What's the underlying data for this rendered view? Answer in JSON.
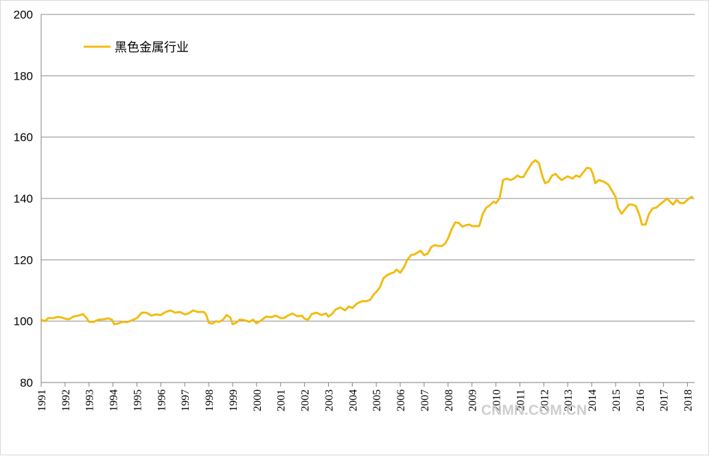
{
  "chart_data": {
    "type": "line",
    "title": "",
    "xlabel": "",
    "ylabel": "",
    "ylim": [
      80,
      200
    ],
    "yticks": [
      "200",
      "180",
      "160",
      "140",
      "120",
      "100",
      "80"
    ],
    "xlim": [
      1991,
      2018.3
    ],
    "xticks": [
      "1991",
      "1992",
      "1993",
      "1994",
      "1995",
      "1996",
      "1997",
      "1998",
      "1999",
      "2000",
      "2001",
      "2002",
      "2003",
      "2004",
      "2005",
      "2006",
      "2007",
      "2008",
      "2009",
      "2010",
      "2011",
      "2012",
      "2013",
      "2014",
      "2015",
      "2016",
      "2017",
      "2018"
    ],
    "grid": true,
    "legend_position": "top-left",
    "series": [
      {
        "name": "黑色金属行业",
        "color": "#f2bb10",
        "points": [
          [
            1991.0,
            100.5
          ],
          [
            1991.15,
            100.0
          ],
          [
            1991.3,
            101.0
          ],
          [
            1991.5,
            101.0
          ],
          [
            1991.7,
            101.4
          ],
          [
            1991.85,
            101.2
          ],
          [
            1992.0,
            100.8
          ],
          [
            1992.15,
            100.6
          ],
          [
            1992.35,
            101.5
          ],
          [
            1992.55,
            101.8
          ],
          [
            1992.75,
            102.3
          ],
          [
            1992.9,
            101.0
          ],
          [
            1993.0,
            99.8
          ],
          [
            1993.2,
            99.8
          ],
          [
            1993.4,
            100.5
          ],
          [
            1993.6,
            100.6
          ],
          [
            1993.8,
            100.9
          ],
          [
            1993.95,
            100.5
          ],
          [
            1994.05,
            99.0
          ],
          [
            1994.2,
            99.2
          ],
          [
            1994.4,
            99.8
          ],
          [
            1994.6,
            99.7
          ],
          [
            1994.8,
            100.3
          ],
          [
            1995.0,
            101.0
          ],
          [
            1995.2,
            102.8
          ],
          [
            1995.4,
            102.8
          ],
          [
            1995.6,
            101.8
          ],
          [
            1995.8,
            102.2
          ],
          [
            1996.0,
            102.0
          ],
          [
            1996.2,
            103.0
          ],
          [
            1996.4,
            103.5
          ],
          [
            1996.6,
            102.8
          ],
          [
            1996.8,
            103.0
          ],
          [
            1997.0,
            102.2
          ],
          [
            1997.15,
            102.5
          ],
          [
            1997.35,
            103.5
          ],
          [
            1997.55,
            103.0
          ],
          [
            1997.8,
            103.0
          ],
          [
            1997.9,
            102.0
          ],
          [
            1998.0,
            99.5
          ],
          [
            1998.15,
            99.2
          ],
          [
            1998.3,
            100.0
          ],
          [
            1998.45,
            99.8
          ],
          [
            1998.6,
            100.5
          ],
          [
            1998.75,
            102.0
          ],
          [
            1998.9,
            101.2
          ],
          [
            1999.0,
            99.0
          ],
          [
            1999.15,
            99.5
          ],
          [
            1999.3,
            100.5
          ],
          [
            1999.5,
            100.3
          ],
          [
            1999.7,
            99.8
          ],
          [
            1999.85,
            100.5
          ],
          [
            2000.0,
            99.3
          ],
          [
            2000.2,
            100.3
          ],
          [
            2000.4,
            101.5
          ],
          [
            2000.6,
            101.3
          ],
          [
            2000.8,
            101.8
          ],
          [
            2001.0,
            101.0
          ],
          [
            2001.15,
            101.0
          ],
          [
            2001.3,
            101.8
          ],
          [
            2001.5,
            102.5
          ],
          [
            2001.7,
            101.6
          ],
          [
            2001.9,
            101.8
          ],
          [
            2002.0,
            100.8
          ],
          [
            2002.15,
            100.5
          ],
          [
            2002.3,
            102.3
          ],
          [
            2002.5,
            102.8
          ],
          [
            2002.7,
            102.0
          ],
          [
            2002.9,
            102.5
          ],
          [
            2003.0,
            101.5
          ],
          [
            2003.15,
            102.3
          ],
          [
            2003.3,
            103.8
          ],
          [
            2003.5,
            104.5
          ],
          [
            2003.7,
            103.5
          ],
          [
            2003.85,
            104.8
          ],
          [
            2004.0,
            104.3
          ],
          [
            2004.2,
            105.8
          ],
          [
            2004.4,
            106.5
          ],
          [
            2004.6,
            106.5
          ],
          [
            2004.75,
            107.0
          ],
          [
            2004.9,
            108.8
          ],
          [
            2005.0,
            109.5
          ],
          [
            2005.15,
            111.0
          ],
          [
            2005.3,
            114.0
          ],
          [
            2005.45,
            115.0
          ],
          [
            2005.6,
            115.5
          ],
          [
            2005.75,
            116.0
          ],
          [
            2005.85,
            116.8
          ],
          [
            2006.0,
            115.8
          ],
          [
            2006.15,
            117.5
          ],
          [
            2006.3,
            120.0
          ],
          [
            2006.45,
            121.5
          ],
          [
            2006.6,
            121.8
          ],
          [
            2006.75,
            122.5
          ],
          [
            2006.85,
            123.0
          ],
          [
            2007.0,
            121.5
          ],
          [
            2007.15,
            122.0
          ],
          [
            2007.3,
            124.2
          ],
          [
            2007.45,
            124.8
          ],
          [
            2007.6,
            124.5
          ],
          [
            2007.75,
            124.5
          ],
          [
            2007.9,
            125.5
          ],
          [
            2008.0,
            127.0
          ],
          [
            2008.15,
            130.0
          ],
          [
            2008.3,
            132.2
          ],
          [
            2008.45,
            132.0
          ],
          [
            2008.6,
            130.8
          ],
          [
            2008.75,
            131.3
          ],
          [
            2008.9,
            131.5
          ],
          [
            2009.0,
            131.0
          ],
          [
            2009.15,
            131.0
          ],
          [
            2009.3,
            131.0
          ],
          [
            2009.45,
            135.0
          ],
          [
            2009.6,
            137.0
          ],
          [
            2009.75,
            137.8
          ],
          [
            2009.9,
            139.0
          ],
          [
            2010.0,
            138.5
          ],
          [
            2010.15,
            140.0
          ],
          [
            2010.3,
            146.0
          ],
          [
            2010.45,
            146.5
          ],
          [
            2010.6,
            146.0
          ],
          [
            2010.75,
            146.5
          ],
          [
            2010.9,
            147.5
          ],
          [
            2011.0,
            147.0
          ],
          [
            2011.15,
            147.0
          ],
          [
            2011.3,
            149.0
          ],
          [
            2011.5,
            151.5
          ],
          [
            2011.65,
            152.5
          ],
          [
            2011.8,
            151.5
          ],
          [
            2011.95,
            147.0
          ],
          [
            2012.05,
            145.0
          ],
          [
            2012.2,
            145.5
          ],
          [
            2012.35,
            147.5
          ],
          [
            2012.5,
            148.0
          ],
          [
            2012.6,
            147.0
          ],
          [
            2012.75,
            146.0
          ],
          [
            2012.9,
            146.8
          ],
          [
            2013.0,
            147.2
          ],
          [
            2013.2,
            146.5
          ],
          [
            2013.35,
            147.5
          ],
          [
            2013.5,
            147.0
          ],
          [
            2013.65,
            148.5
          ],
          [
            2013.8,
            150.0
          ],
          [
            2013.95,
            149.8
          ],
          [
            2014.05,
            148.0
          ],
          [
            2014.15,
            145.0
          ],
          [
            2014.3,
            146.0
          ],
          [
            2014.5,
            145.5
          ],
          [
            2014.7,
            144.5
          ],
          [
            2014.85,
            142.5
          ],
          [
            2015.0,
            140.5
          ],
          [
            2015.1,
            137.0
          ],
          [
            2015.25,
            135.0
          ],
          [
            2015.4,
            136.5
          ],
          [
            2015.55,
            138.0
          ],
          [
            2015.7,
            138.0
          ],
          [
            2015.85,
            137.5
          ],
          [
            2016.0,
            134.5
          ],
          [
            2016.1,
            131.5
          ],
          [
            2016.25,
            131.5
          ],
          [
            2016.4,
            135.0
          ],
          [
            2016.55,
            136.8
          ],
          [
            2016.7,
            137.0
          ],
          [
            2016.85,
            138.0
          ],
          [
            2017.0,
            139.0
          ],
          [
            2017.15,
            140.0
          ],
          [
            2017.3,
            138.8
          ],
          [
            2017.4,
            138.0
          ],
          [
            2017.55,
            139.5
          ],
          [
            2017.7,
            138.5
          ],
          [
            2017.85,
            138.5
          ],
          [
            2018.0,
            139.5
          ],
          [
            2018.1,
            140.2
          ],
          [
            2018.2,
            140.5
          ]
        ]
      }
    ]
  },
  "watermark": "CNMN.COM.CN"
}
